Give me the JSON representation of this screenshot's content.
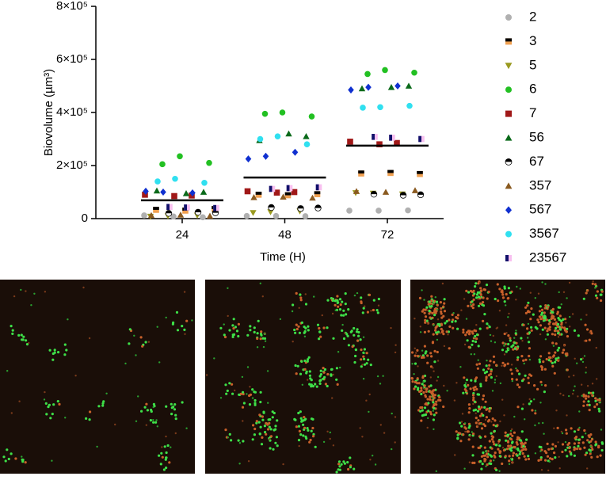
{
  "chart_data": {
    "type": "scatter",
    "xlabel": "Time (H)",
    "ylabel": "Biovolume (µm³)",
    "categories": [
      "24",
      "48",
      "72"
    ],
    "ylim": [
      0,
      800000
    ],
    "yticks": [
      0,
      {
        "value": 200000,
        "label": "2×10⁵"
      },
      {
        "value": 400000,
        "label": "4×10⁵"
      },
      {
        "value": 600000,
        "label": "6×10⁵"
      },
      {
        "value": 800000,
        "label": "8×10⁵"
      }
    ],
    "means": [
      69000,
      155000,
      275000
    ],
    "series": [
      {
        "name": "2",
        "marker": "circle",
        "color": "#b0b0b0",
        "values": [
          [
            12000,
            8000,
            5000
          ],
          [
            10000,
            10000,
            9000
          ],
          [
            30000,
            30000,
            31000
          ]
        ]
      },
      {
        "name": "3",
        "marker": "square",
        "color": "#f0a050",
        "color2": "#000000",
        "values": [
          [
            33000,
            30000,
            36000
          ],
          [
            90000,
            88000,
            92000
          ],
          [
            170000,
            172000,
            168000
          ]
        ]
      },
      {
        "name": "5",
        "marker": "triangle-down",
        "color": "#9a9a20",
        "values": [
          [
            10000,
            12000,
            8000
          ],
          [
            25000,
            28000,
            22000
          ],
          [
            95000,
            92000,
            97000
          ]
        ]
      },
      {
        "name": "6",
        "marker": "circle",
        "color": "#22c022",
        "values": [
          [
            235000,
            210000,
            205000
          ],
          [
            400000,
            385000,
            395000
          ],
          [
            560000,
            550000,
            545000
          ]
        ]
      },
      {
        "name": "7",
        "marker": "square",
        "color": "#a01818",
        "values": [
          [
            87000,
            90000,
            85000
          ],
          [
            100000,
            103000,
            98000
          ],
          [
            285000,
            290000,
            280000
          ]
        ]
      },
      {
        "name": "56",
        "marker": "triangle",
        "color": "#0a6a1a",
        "values": [
          [
            100000,
            105000,
            95000
          ],
          [
            310000,
            295000,
            320000
          ],
          [
            500000,
            490000,
            495000
          ]
        ]
      },
      {
        "name": "67",
        "marker": "circle",
        "color": "#ffffff",
        "color2": "#000000",
        "values": [
          [
            22000,
            20000,
            24000
          ],
          [
            40000,
            42000,
            38000
          ],
          [
            90000,
            92000,
            88000
          ]
        ]
      },
      {
        "name": "357",
        "marker": "triangle",
        "color": "#8a5a20",
        "values": [
          [
            12000,
            14000,
            10000
          ],
          [
            80000,
            82000,
            78000
          ],
          [
            103000,
            100000,
            106000
          ]
        ]
      },
      {
        "name": "567",
        "marker": "diamond",
        "color": "#1030d0",
        "values": [
          [
            100000,
            97000,
            103000
          ],
          [
            235000,
            250000,
            225000
          ],
          [
            495000,
            500000,
            485000
          ]
        ]
      },
      {
        "name": "3567",
        "marker": "circle",
        "color": "#30e0f0",
        "values": [
          [
            150000,
            135000,
            140000
          ],
          [
            310000,
            280000,
            300000
          ],
          [
            420000,
            425000,
            418000
          ]
        ]
      },
      {
        "name": "23567",
        "marker": "square",
        "color": "#f8c0f0",
        "color2": "#10106a",
        "values": [
          [
            42000,
            40000,
            44000
          ],
          [
            115000,
            118000,
            112000
          ],
          [
            305000,
            300000,
            308000
          ]
        ]
      }
    ]
  }
}
